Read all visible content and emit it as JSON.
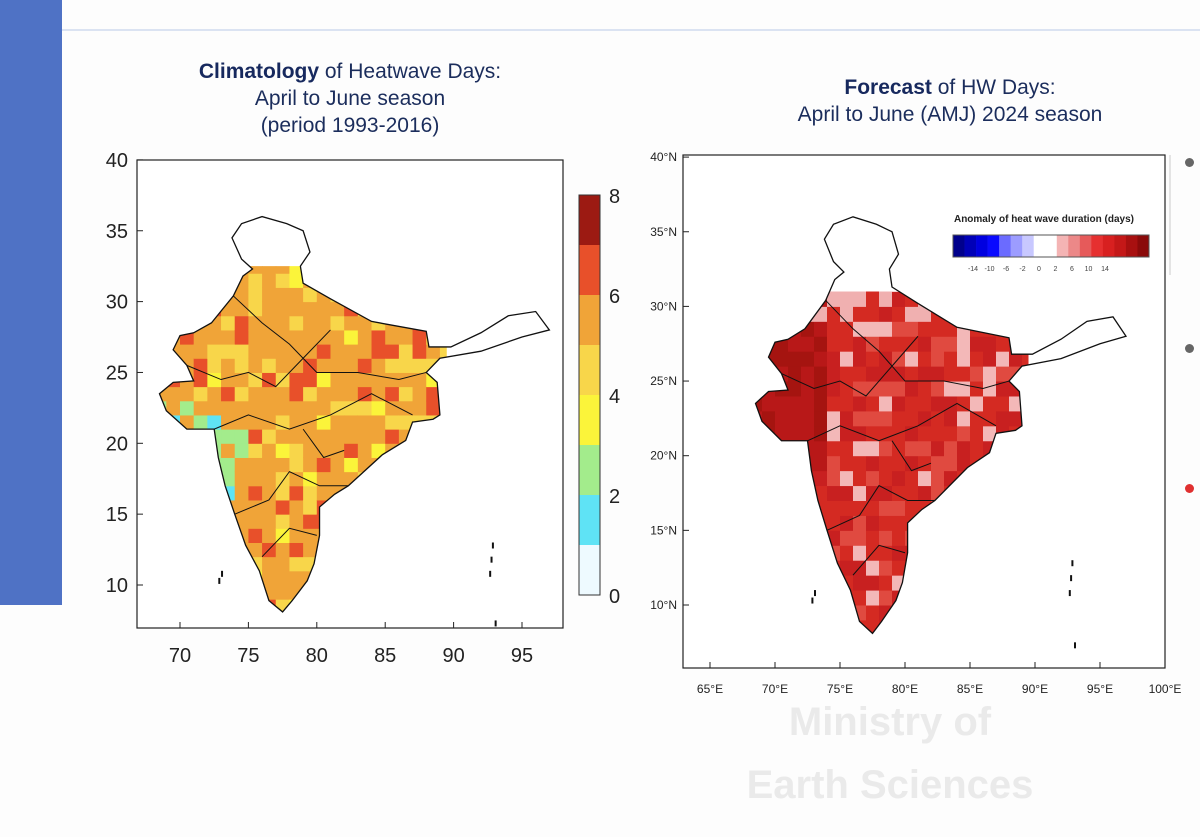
{
  "left_map": {
    "title_bold": "Climatology",
    "title_rest": " of Heatwave Days:",
    "title_line2": "April to June season",
    "title_line3": "(period 1993-2016)",
    "y_ticks": [
      "40",
      "35",
      "30",
      "25",
      "20",
      "15",
      "10"
    ],
    "x_ticks": [
      "70",
      "75",
      "80",
      "85",
      "90",
      "95"
    ],
    "colorbar_ticks": [
      "8",
      "6",
      "4",
      "2",
      "0"
    ],
    "colorbar_colors": [
      "#eefaff",
      "#5fe3f5",
      "#a3ec8c",
      "#fbf43a",
      "#f8d64a",
      "#f0a438",
      "#e8502a",
      "#9c1a12"
    ]
  },
  "right_map": {
    "title_bold": "Forecast",
    "title_rest": " of HW Days:",
    "title_line2": "April to June (AMJ) 2024 season",
    "y_ticks": [
      "40°N",
      "35°N",
      "30°N",
      "25°N",
      "20°N",
      "15°N",
      "10°N"
    ],
    "x_ticks": [
      "65°E",
      "70°E",
      "75°E",
      "80°E",
      "85°E",
      "90°E",
      "95°E",
      "100°E"
    ],
    "legend_title": "Anomaly of heat wave duration (days)",
    "legend_ticks": [
      "-14",
      "-10",
      "-6",
      "-2",
      "0",
      "2",
      "6",
      "10",
      "14"
    ],
    "legend_colors": [
      "#00008c",
      "#0000b8",
      "#0000e0",
      "#0a0aff",
      "#6b6bff",
      "#9c9cff",
      "#c8c8ff",
      "#ffffff",
      "#ffffff",
      "#f4b4b4",
      "#ec8888",
      "#e65a5a",
      "#e63030",
      "#d82020",
      "#c41818",
      "#a81010",
      "#8a0a0a"
    ]
  },
  "watermark": {
    "line1": "Ministry of",
    "line2": "Earth Sciences"
  }
}
